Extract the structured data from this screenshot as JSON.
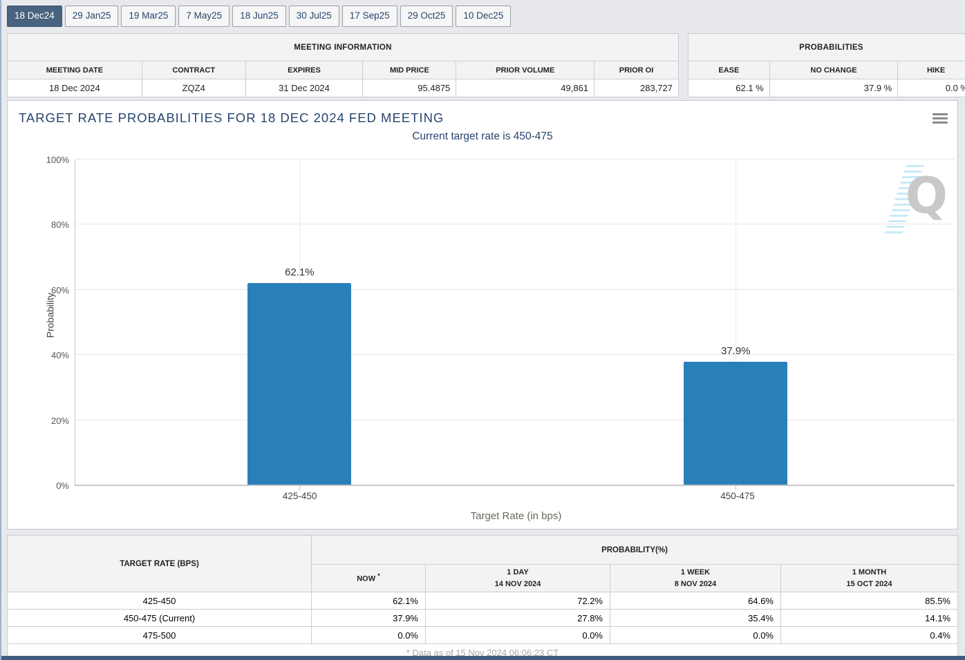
{
  "tabs": [
    {
      "label": "18 Dec24",
      "active": true
    },
    {
      "label": "29 Jan25",
      "active": false
    },
    {
      "label": "19 Mar25",
      "active": false
    },
    {
      "label": "7 May25",
      "active": false
    },
    {
      "label": "18 Jun25",
      "active": false
    },
    {
      "label": "30 Jul25",
      "active": false
    },
    {
      "label": "17 Sep25",
      "active": false
    },
    {
      "label": "29 Oct25",
      "active": false
    },
    {
      "label": "10 Dec25",
      "active": false
    }
  ],
  "meeting_info": {
    "title": "MEETING INFORMATION",
    "columns": [
      "MEETING DATE",
      "CONTRACT",
      "EXPIRES",
      "MID PRICE",
      "PRIOR VOLUME",
      "PRIOR OI"
    ],
    "row": {
      "meeting_date": "18 Dec 2024",
      "contract": "ZQZ4",
      "expires": "31 Dec 2024",
      "mid_price": "95.4875",
      "prior_volume": "49,861",
      "prior_oi": "283,727"
    }
  },
  "probabilities": {
    "title": "PROBABILITIES",
    "columns": [
      "EASE",
      "NO CHANGE",
      "HIKE"
    ],
    "row": {
      "ease": "62.1 %",
      "no_change": "37.9 %",
      "hike": "0.0 %"
    }
  },
  "chart": {
    "title": "TARGET RATE PROBABILITIES FOR 18 DEC 2024 FED MEETING",
    "subtitle": "Current target rate is 450-475",
    "watermark_letter": "Q"
  },
  "chart_data": {
    "type": "bar",
    "categories": [
      "425-450",
      "450-475"
    ],
    "values": [
      62.1,
      37.9
    ],
    "bar_labels": [
      "62.1%",
      "37.9%"
    ],
    "xlabel": "Target Rate (in bps)",
    "ylabel": "Probability",
    "ylim": [
      0,
      100
    ],
    "yticks": [
      "0%",
      "20%",
      "40%",
      "60%",
      "80%",
      "100%"
    ],
    "grid": true,
    "legend_position": "none",
    "bar_color": "#2980b9"
  },
  "history_table": {
    "rate_header": "TARGET RATE (BPS)",
    "group_header": "PROBABILITY(%)",
    "columns": [
      {
        "label": "NOW",
        "sup": "*",
        "date": ""
      },
      {
        "label": "1 DAY",
        "date": "14 NOV 2024"
      },
      {
        "label": "1 WEEK",
        "date": "8 NOV 2024"
      },
      {
        "label": "1 MONTH",
        "date": "15 OCT 2024"
      }
    ],
    "rows": [
      {
        "rate": "425-450",
        "now": "62.1%",
        "day": "72.2%",
        "week": "64.6%",
        "month": "85.5%"
      },
      {
        "rate": "450-475 (Current)",
        "now": "37.9%",
        "day": "27.8%",
        "week": "35.4%",
        "month": "14.1%"
      },
      {
        "rate": "475-500",
        "now": "0.0%",
        "day": "0.0%",
        "week": "0.0%",
        "month": "0.4%"
      }
    ],
    "footnote": "* Data as of 15 Nov 2024 06:06:23 CT"
  },
  "colors": {
    "bar": "#2980b9",
    "active_tab_bg": "#48637f",
    "title_text": "#26456e",
    "now_column_bg": "#fdfdd2",
    "page_bottom_bar": "#3d5c80"
  }
}
